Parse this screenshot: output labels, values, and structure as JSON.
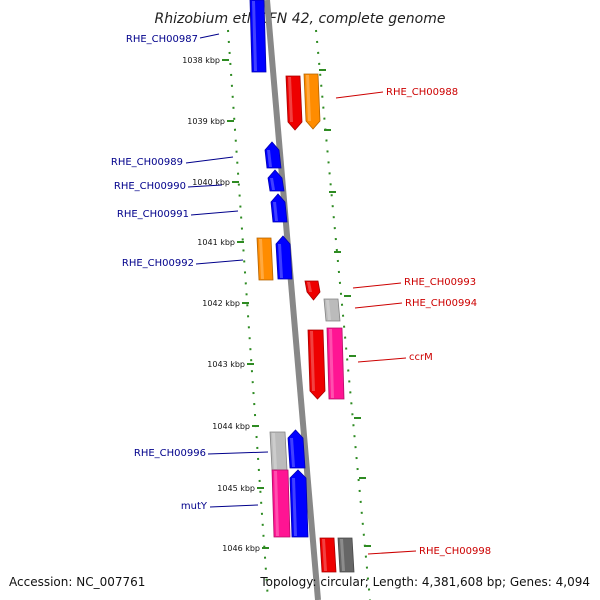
{
  "title": "Rhizobium etli CFN 42, complete genome",
  "footer": {
    "accession": "Accession: NC_007761",
    "summary": "Topology: circular; Length: 4,381,608 bp; Genes: 4,094"
  },
  "colors": {
    "blue": "#0000ff",
    "red": "#ee0000",
    "orange": "#ff8c00",
    "magenta": "#ff1493",
    "gray": "#bbbbbb",
    "darkgray": "#666666",
    "axis": "#888888",
    "ticks": "#2e8b22",
    "leftLabel": "#00008b",
    "rightLabel": "#cc0000"
  },
  "ticks": [
    "1038 kbp",
    "1039 kbp",
    "1040 kbp",
    "1041 kbp",
    "1042 kbp",
    "1043 kbp",
    "1044 kbp",
    "1045 kbp",
    "1046 kbp"
  ],
  "genes": [
    {
      "label": "RHE_CH00987",
      "side": "left",
      "color": "blue"
    },
    {
      "label": "RHE_CH00988",
      "side": "right",
      "color": "red"
    },
    {
      "label": "",
      "side": "right",
      "color": "orange"
    },
    {
      "label": "RHE_CH00989",
      "side": "left",
      "color": "blue"
    },
    {
      "label": "RHE_CH00990",
      "side": "left",
      "color": "blue"
    },
    {
      "label": "RHE_CH00991",
      "side": "left",
      "color": "blue"
    },
    {
      "label": "",
      "side": "left",
      "color": "orange"
    },
    {
      "label": "RHE_CH00992",
      "side": "left",
      "color": "blue"
    },
    {
      "label": "RHE_CH00993",
      "side": "right",
      "color": "red"
    },
    {
      "label": "RHE_CH00994",
      "side": "right",
      "color": "gray"
    },
    {
      "label": "",
      "side": "right",
      "color": "red"
    },
    {
      "label": "ccrM",
      "side": "right",
      "color": "magenta"
    },
    {
      "label": "",
      "side": "left",
      "color": "gray"
    },
    {
      "label": "RHE_CH00996",
      "side": "left",
      "color": "blue"
    },
    {
      "label": "",
      "side": "left",
      "color": "magenta"
    },
    {
      "label": "mutY",
      "side": "left",
      "color": "blue"
    },
    {
      "label": "",
      "side": "right",
      "color": "red"
    },
    {
      "label": "RHE_CH00998",
      "side": "right",
      "color": "darkgray"
    }
  ]
}
